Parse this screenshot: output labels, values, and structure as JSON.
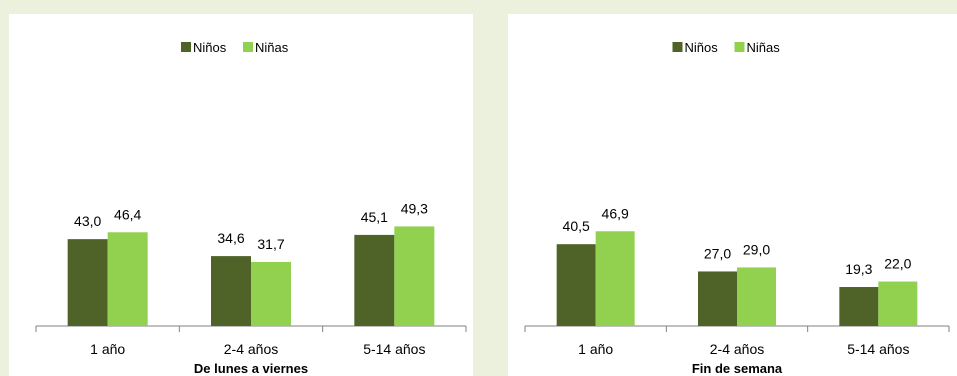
{
  "colors": {
    "background": "#ebf1dd",
    "panel": "#ffffff",
    "series_ninos": "#4f6228",
    "series_ninas": "#92d050",
    "axis": "#808080"
  },
  "chart_data": [
    {
      "type": "bar",
      "title": "",
      "xlabel": "De lunes a viernes",
      "ylabel": "",
      "categories": [
        "1 año",
        "2-4 años",
        "5-14 años"
      ],
      "series": [
        {
          "name": "Niños",
          "values": [
            43.0,
            34.6,
            45.1
          ],
          "labels": [
            "43,0",
            "34,6",
            "45,1"
          ]
        },
        {
          "name": "Niñas",
          "values": [
            46.4,
            31.7,
            49.3
          ],
          "labels": [
            "46,4",
            "31,7",
            "49,3"
          ]
        }
      ],
      "ylim": [
        0,
        100
      ],
      "grid": false,
      "legend": "top-center"
    },
    {
      "type": "bar",
      "title": "",
      "xlabel": "Fin de semana",
      "ylabel": "",
      "categories": [
        "1 año",
        "2-4 años",
        "5-14 años"
      ],
      "series": [
        {
          "name": "Niños",
          "values": [
            40.5,
            27.0,
            19.3
          ],
          "labels": [
            "40,5",
            "27,0",
            "19,3"
          ]
        },
        {
          "name": "Niñas",
          "values": [
            46.9,
            29.0,
            22.0
          ],
          "labels": [
            "46,9",
            "29,0",
            "22,0"
          ]
        }
      ],
      "ylim": [
        0,
        100
      ],
      "grid": false,
      "legend": "top-center"
    }
  ]
}
